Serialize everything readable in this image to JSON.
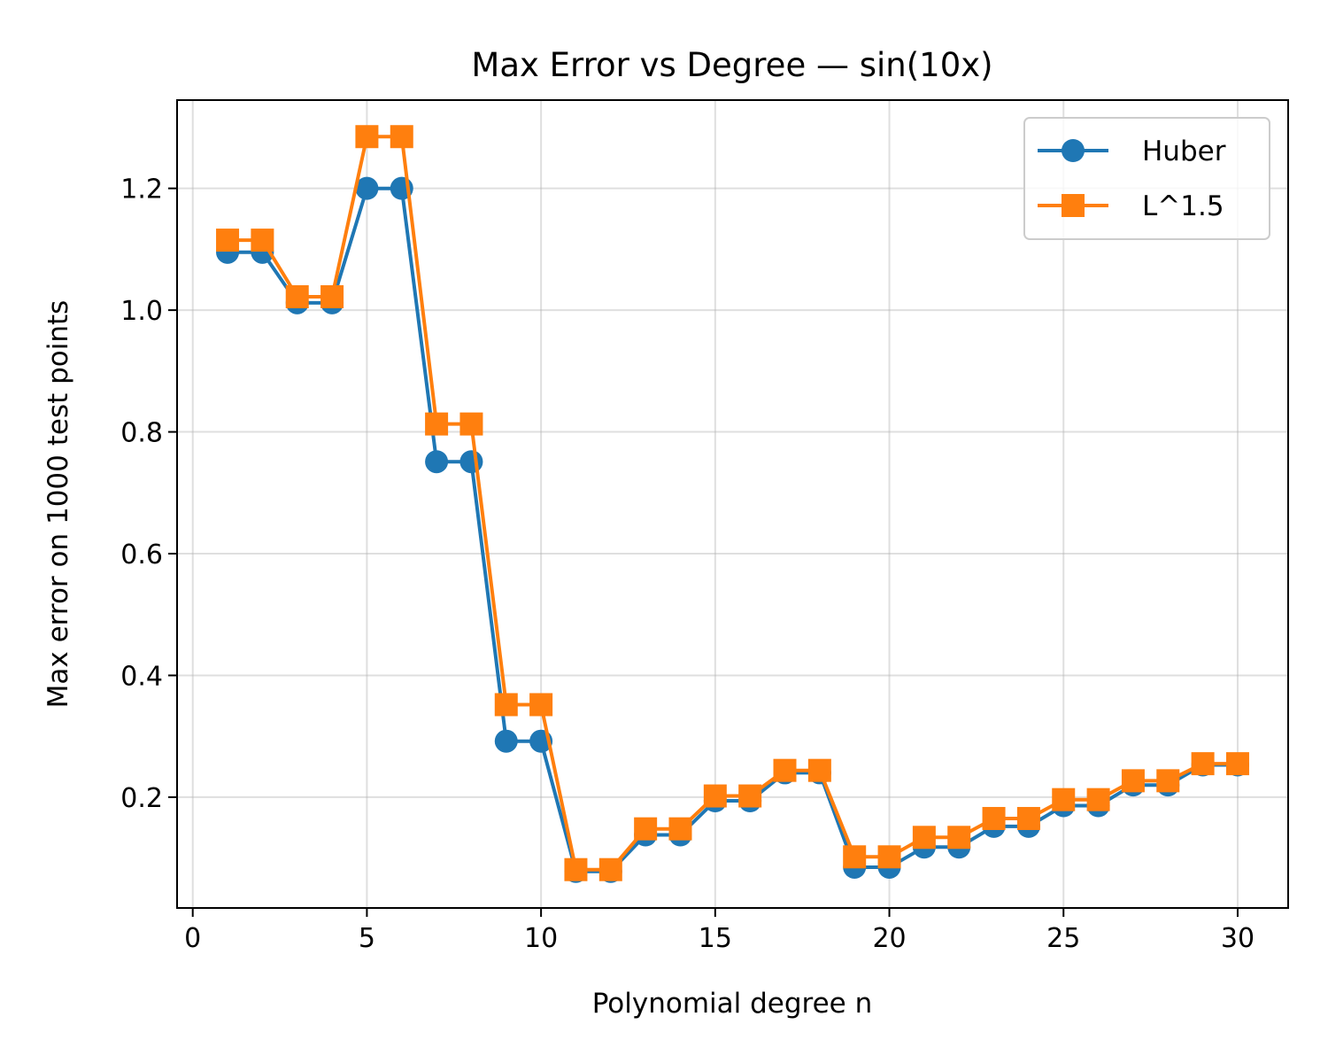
{
  "chart_data": {
    "type": "line",
    "title": "Max Error vs Degree — sin(10x)",
    "xlabel": "Polynomial degree n",
    "ylabel": "Max error on 1000 test points",
    "xlim": [
      -0.45,
      31.45
    ],
    "ylim": [
      0.018,
      1.345
    ],
    "xticks": [
      0,
      5,
      10,
      15,
      20,
      25,
      30
    ],
    "xtick_labels": [
      "0",
      "5",
      "10",
      "15",
      "20",
      "25",
      "30"
    ],
    "yticks": [
      0.2,
      0.4,
      0.6,
      0.8,
      1.0,
      1.2
    ],
    "ytick_labels": [
      "0.2",
      "0.4",
      "0.6",
      "0.8",
      "1.0",
      "1.2"
    ],
    "grid": true,
    "legend_position": "top-right",
    "x": [
      1,
      2,
      3,
      4,
      5,
      6,
      7,
      8,
      9,
      10,
      11,
      12,
      13,
      14,
      15,
      16,
      17,
      18,
      19,
      20,
      21,
      22,
      23,
      24,
      25,
      26,
      27,
      28,
      29,
      30
    ],
    "series": [
      {
        "name": "Huber",
        "color": "#1f77b4",
        "marker": "circle",
        "values": [
          1.095,
          1.095,
          1.012,
          1.012,
          1.2,
          1.2,
          0.751,
          0.751,
          0.292,
          0.292,
          0.078,
          0.078,
          0.138,
          0.138,
          0.194,
          0.194,
          0.24,
          0.24,
          0.085,
          0.085,
          0.118,
          0.118,
          0.152,
          0.152,
          0.186,
          0.186,
          0.22,
          0.22,
          0.253,
          0.253
        ]
      },
      {
        "name": "L^1.5",
        "color": "#ff7f0e",
        "marker": "square",
        "values": [
          1.115,
          1.115,
          1.022,
          1.022,
          1.285,
          1.285,
          0.813,
          0.813,
          0.352,
          0.352,
          0.081,
          0.081,
          0.148,
          0.148,
          0.202,
          0.202,
          0.244,
          0.244,
          0.102,
          0.102,
          0.134,
          0.134,
          0.165,
          0.165,
          0.196,
          0.196,
          0.227,
          0.227,
          0.255,
          0.255
        ]
      }
    ]
  }
}
